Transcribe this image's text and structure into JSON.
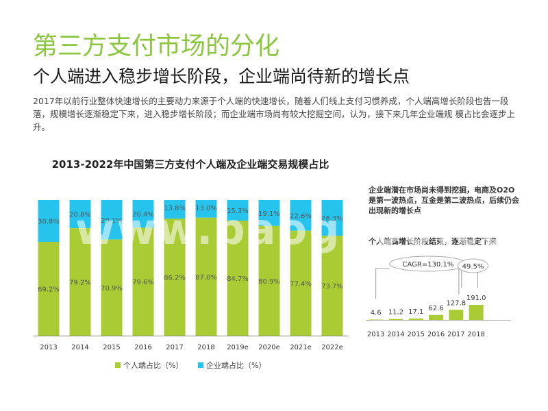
{
  "header": {
    "title": "第三方支付市场的分化",
    "subtitle": "个人端进入稳步增长阶段，企业端尚待新的增长点",
    "description": "2017年以前行业整体快速增长的主要动力来源于个人端的快速增长，随着人们线上支付习惯养成，个人端高增长阶段也告一段落，规模增长逐渐稳定下来，进入稳步增长阶段；而企业端市场尚有较大挖掘空间，认为，接下来几年企业端规  模占比会逐步上升。"
  },
  "chart_data": [
    {
      "type": "bar",
      "stacked": true,
      "title": "2013-2022年中国第三方支付个人端及企业端交易规模占比",
      "categories": [
        "2013",
        "2014",
        "2015",
        "2016",
        "2017",
        "2018",
        "2019e",
        "2020e",
        "2021e",
        "2022e"
      ],
      "series": [
        {
          "name": "个人端占比（%）",
          "color": "#a9cc35",
          "values": [
            69.2,
            79.2,
            70.9,
            79.6,
            86.2,
            87.0,
            84.7,
            80.9,
            77.4,
            73.7
          ],
          "labels": [
            "69.2%",
            "79.2%",
            "70.9%",
            "79.6%",
            "86.2%",
            "87.0%",
            "84.7%",
            "80.9%",
            "77.4%",
            "73.7%"
          ]
        },
        {
          "name": "企业端占比（%）",
          "color": "#26c4ec",
          "values": [
            30.8,
            20.8,
            29.1,
            20.4,
            13.8,
            13.0,
            15.3,
            19.1,
            22.6,
            26.3
          ],
          "labels": [
            "30.8%",
            "20.8%",
            "29.1%",
            "20.4%",
            "13.8%",
            "13.0%",
            "15.3%",
            "19.1%",
            "22.6%",
            "26.3%"
          ]
        }
      ],
      "ylim": [
        0,
        100
      ],
      "legend": "bottom"
    },
    {
      "type": "bar",
      "categories": [
        "2013",
        "2014",
        "2015",
        "2016",
        "2017",
        "2018"
      ],
      "values": [
        4.6,
        11.2,
        17.1,
        62.6,
        127.8,
        191.0
      ],
      "labels": [
        "4.6",
        "11.2",
        "17.1",
        "62.6",
        "127.8",
        "191.0"
      ],
      "color": "#a9cc35",
      "annotations": {
        "cagr": "CAGR=130.1%",
        "growth": "49.5%"
      }
    }
  ],
  "side": {
    "note": "企业端潜在市场尚未得到挖掘，电商及O2O是第一波热点，互金是第二波热点，后续仍会出现新的增长点",
    "subtitle": "个人端高增长阶段结束，逐渐稳定下来"
  },
  "watermark": "www.baogao8.com"
}
